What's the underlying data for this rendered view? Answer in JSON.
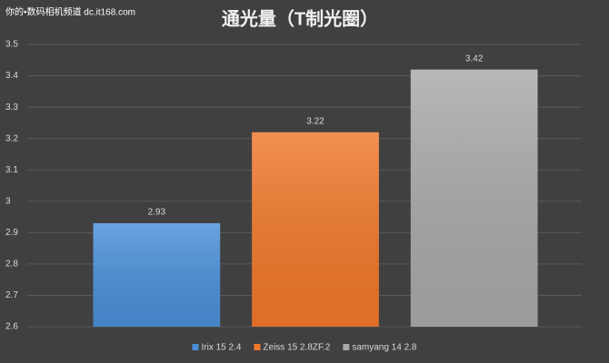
{
  "chart_data": {
    "type": "bar",
    "title": "通光量（T制光圈）",
    "watermark": "你的•数码相机频道 dc.it168.com",
    "categories": [
      null
    ],
    "series": [
      {
        "name": "Irix 15 2.4",
        "color": "#4a8fd8",
        "values": [
          2.93
        ]
      },
      {
        "name": "Zeiss 15 2.8ZF.2",
        "color": "#f0782a",
        "values": [
          3.22
        ]
      },
      {
        "name": "samyang 14 2.8",
        "color": "#a9a9a9",
        "values": [
          3.42
        ]
      }
    ],
    "ylim": [
      2.6,
      3.5
    ],
    "yticks": [
      2.6,
      2.7,
      2.8,
      2.9,
      3,
      3.1,
      3.2,
      3.3,
      3.4,
      3.5
    ],
    "grid": true,
    "legend": "bottom"
  }
}
